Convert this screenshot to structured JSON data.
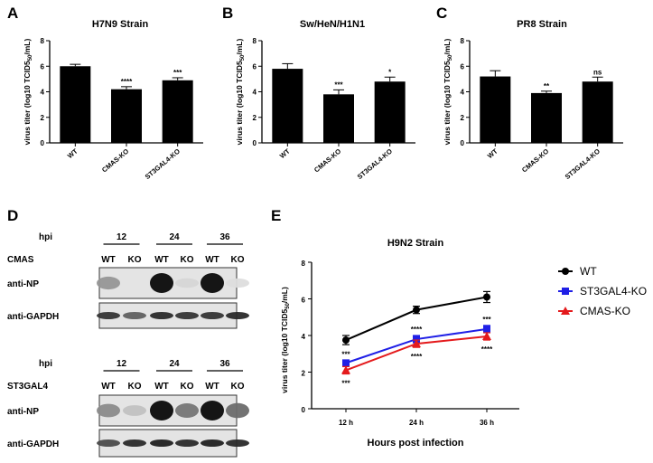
{
  "panels": {
    "A": "A",
    "B": "B",
    "C": "C",
    "D": "D",
    "E": "E"
  },
  "chart_data": [
    {
      "type": "bar",
      "panel": "A",
      "title": "H7N9 Strain",
      "ylabel": "virus titer (log10 TCID50/mL)",
      "ylim": [
        0,
        8
      ],
      "yticks": [
        "0",
        "2",
        "4",
        "6",
        "8"
      ],
      "categories": [
        "WT",
        "CMAS-KO",
        "ST3GAL4-KO"
      ],
      "values": [
        6.0,
        4.2,
        4.9
      ],
      "errors": [
        0.15,
        0.2,
        0.2
      ],
      "significance": [
        "",
        "****",
        "***"
      ]
    },
    {
      "type": "bar",
      "panel": "B",
      "title": "Sw/HeN/H1N1",
      "ylabel": "virus titer (log10 TCID50/mL)",
      "ylim": [
        0,
        8
      ],
      "yticks": [
        "0",
        "2",
        "4",
        "6",
        "8"
      ],
      "categories": [
        "WT",
        "CMAS-KO",
        "ST3GAL4-KO"
      ],
      "values": [
        5.8,
        3.8,
        4.8
      ],
      "errors": [
        0.4,
        0.35,
        0.35
      ],
      "significance": [
        "",
        "***",
        "*"
      ]
    },
    {
      "type": "bar",
      "panel": "C",
      "title": "PR8 Strain",
      "ylabel": "virus titer (log10 TCID50/mL)",
      "ylim": [
        0,
        8
      ],
      "yticks": [
        "0",
        "2",
        "4",
        "6",
        "8"
      ],
      "categories": [
        "WT",
        "CMAS-KO",
        "ST3GAL4-KO"
      ],
      "values": [
        5.2,
        3.9,
        4.8
      ],
      "errors": [
        0.45,
        0.15,
        0.35
      ],
      "significance": [
        "",
        "**",
        "ns"
      ]
    },
    {
      "type": "line",
      "panel": "E",
      "title": "H9N2 Strain",
      "xlabel": "Hours post infection",
      "ylabel": "virus titer (log10 TCID50/mL)",
      "ylim": [
        0,
        8
      ],
      "yticks": [
        "0",
        "2",
        "4",
        "6",
        "8"
      ],
      "categories": [
        "12 h",
        "24 h",
        "36 h"
      ],
      "legend": "right",
      "series": [
        {
          "name": "WT",
          "color": "#000000",
          "marker": "circle",
          "values": [
            3.75,
            5.4,
            6.1
          ],
          "errors": [
            0.25,
            0.2,
            0.3
          ]
        },
        {
          "name": "ST3GAL4-KO",
          "color": "#1f1fe6",
          "marker": "square",
          "values": [
            2.5,
            3.8,
            4.35
          ],
          "errors": [
            0.15,
            0.2,
            0.2
          ]
        },
        {
          "name": "CMAS-KO",
          "color": "#e41a1c",
          "marker": "triangle",
          "values": [
            2.1,
            3.55,
            3.95
          ],
          "errors": [
            0.2,
            0.2,
            0.2
          ]
        }
      ],
      "annotations": [
        {
          "x": "12 h",
          "above": "***",
          "below": "***"
        },
        {
          "x": "24 h",
          "above": "****",
          "below": "****"
        },
        {
          "x": "36 h",
          "above": "***",
          "below": "****"
        }
      ]
    }
  ],
  "blots": [
    {
      "hpi_label": "hpi",
      "timepoints": [
        "12",
        "24",
        "36"
      ],
      "cell_label": "CMAS",
      "lanes": [
        "WT",
        "KO",
        "WT",
        "KO",
        "WT",
        "KO"
      ],
      "rows": [
        {
          "label": "anti-NP",
          "intensities": [
            0.35,
            0.0,
            1.0,
            0.05,
            1.0,
            0.02
          ]
        },
        {
          "label": "anti-GAPDH",
          "intensities": [
            0.8,
            0.6,
            0.85,
            0.8,
            0.8,
            0.85
          ]
        }
      ]
    },
    {
      "hpi_label": "hpi",
      "timepoints": [
        "12",
        "24",
        "36"
      ],
      "cell_label": "ST3GAL4",
      "lanes": [
        "WT",
        "KO",
        "WT",
        "KO",
        "WT",
        "KO"
      ],
      "rows": [
        {
          "label": "anti-NP",
          "intensities": [
            0.4,
            0.15,
            1.0,
            0.5,
            1.0,
            0.55
          ]
        },
        {
          "label": "anti-GAPDH",
          "intensities": [
            0.7,
            0.85,
            0.9,
            0.85,
            0.9,
            0.85
          ]
        }
      ]
    }
  ]
}
